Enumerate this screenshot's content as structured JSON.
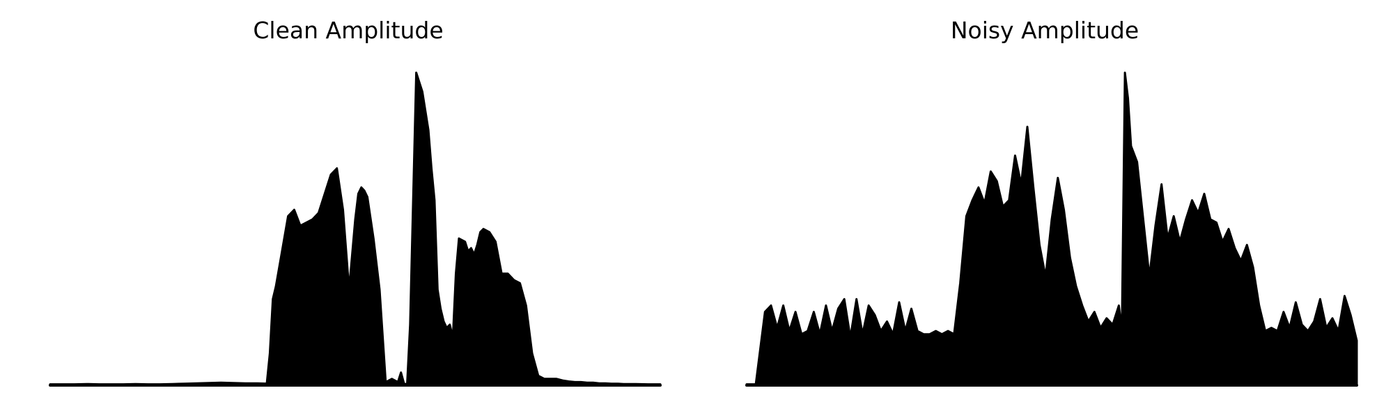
{
  "colors": {
    "waveform": "#000000",
    "background": "#ffffff"
  },
  "chart_data": [
    {
      "type": "area",
      "title": "Clean Amplitude",
      "xlabel": "",
      "ylabel": "",
      "grid": false,
      "axes_visible": false,
      "ylim": [
        0,
        1
      ],
      "x": [
        0.0,
        0.02,
        0.04,
        0.06,
        0.08,
        0.1,
        0.12,
        0.14,
        0.16,
        0.18,
        0.2,
        0.22,
        0.24,
        0.26,
        0.28,
        0.3,
        0.32,
        0.34,
        0.355,
        0.36,
        0.365,
        0.37,
        0.38,
        0.39,
        0.4,
        0.41,
        0.42,
        0.43,
        0.44,
        0.45,
        0.46,
        0.47,
        0.48,
        0.49,
        0.5,
        0.505,
        0.51,
        0.515,
        0.52,
        0.53,
        0.54,
        0.55,
        0.56,
        0.57,
        0.575,
        0.58,
        0.585,
        0.59,
        0.6,
        0.61,
        0.62,
        0.625,
        0.63,
        0.635,
        0.64,
        0.645,
        0.65,
        0.655,
        0.66,
        0.665,
        0.67,
        0.68,
        0.685,
        0.69,
        0.695,
        0.7,
        0.705,
        0.71,
        0.72,
        0.73,
        0.74,
        0.75,
        0.76,
        0.77,
        0.78,
        0.79,
        0.8,
        0.81,
        0.82,
        0.83,
        0.84,
        0.85,
        0.86,
        0.87,
        0.88,
        0.89,
        0.9,
        0.91,
        0.92,
        0.93,
        0.94,
        0.96,
        0.98,
        1.0
      ],
      "values": [
        0.003,
        0.003,
        0.003,
        0.004,
        0.003,
        0.003,
        0.003,
        0.004,
        0.003,
        0.003,
        0.004,
        0.005,
        0.006,
        0.007,
        0.008,
        0.007,
        0.006,
        0.006,
        0.005,
        0.1,
        0.27,
        0.31,
        0.42,
        0.53,
        0.55,
        0.5,
        0.51,
        0.52,
        0.54,
        0.6,
        0.66,
        0.68,
        0.55,
        0.3,
        0.52,
        0.6,
        0.62,
        0.61,
        0.59,
        0.46,
        0.3,
        0.01,
        0.02,
        0.01,
        0.04,
        0.005,
        0.003,
        0.19,
        0.98,
        0.92,
        0.8,
        0.68,
        0.58,
        0.3,
        0.24,
        0.2,
        0.18,
        0.19,
        0.15,
        0.35,
        0.46,
        0.45,
        0.42,
        0.43,
        0.41,
        0.44,
        0.48,
        0.49,
        0.48,
        0.45,
        0.35,
        0.35,
        0.33,
        0.32,
        0.25,
        0.1,
        0.03,
        0.02,
        0.02,
        0.02,
        0.015,
        0.012,
        0.01,
        0.01,
        0.008,
        0.008,
        0.006,
        0.006,
        0.005,
        0.005,
        0.004,
        0.004,
        0.003,
        0.003
      ]
    },
    {
      "type": "area",
      "title": "Noisy Amplitude",
      "xlabel": "",
      "ylabel": "",
      "grid": false,
      "axes_visible": false,
      "ylim": [
        0,
        1
      ],
      "x": [
        0.0,
        0.015,
        0.03,
        0.04,
        0.05,
        0.06,
        0.07,
        0.08,
        0.09,
        0.1,
        0.11,
        0.12,
        0.13,
        0.14,
        0.15,
        0.16,
        0.17,
        0.18,
        0.19,
        0.2,
        0.21,
        0.22,
        0.23,
        0.24,
        0.25,
        0.26,
        0.27,
        0.28,
        0.29,
        0.3,
        0.31,
        0.32,
        0.33,
        0.34,
        0.35,
        0.36,
        0.37,
        0.38,
        0.39,
        0.4,
        0.41,
        0.42,
        0.43,
        0.44,
        0.45,
        0.46,
        0.47,
        0.48,
        0.49,
        0.5,
        0.51,
        0.52,
        0.53,
        0.54,
        0.55,
        0.56,
        0.57,
        0.58,
        0.59,
        0.6,
        0.61,
        0.615,
        0.62,
        0.625,
        0.63,
        0.64,
        0.65,
        0.66,
        0.67,
        0.68,
        0.69,
        0.7,
        0.71,
        0.72,
        0.73,
        0.74,
        0.75,
        0.76,
        0.77,
        0.78,
        0.79,
        0.8,
        0.81,
        0.82,
        0.83,
        0.84,
        0.85,
        0.86,
        0.87,
        0.88,
        0.89,
        0.9,
        0.91,
        0.92,
        0.93,
        0.94,
        0.95,
        0.96,
        0.97,
        0.98,
        0.99,
        1.0
      ],
      "values": [
        0.003,
        0.003,
        0.23,
        0.25,
        0.18,
        0.25,
        0.17,
        0.23,
        0.16,
        0.17,
        0.23,
        0.16,
        0.25,
        0.17,
        0.24,
        0.27,
        0.15,
        0.27,
        0.16,
        0.25,
        0.22,
        0.17,
        0.2,
        0.16,
        0.26,
        0.17,
        0.24,
        0.17,
        0.16,
        0.16,
        0.17,
        0.16,
        0.17,
        0.16,
        0.32,
        0.53,
        0.58,
        0.62,
        0.57,
        0.67,
        0.64,
        0.56,
        0.58,
        0.72,
        0.63,
        0.81,
        0.62,
        0.44,
        0.34,
        0.52,
        0.65,
        0.55,
        0.4,
        0.31,
        0.25,
        0.2,
        0.23,
        0.18,
        0.21,
        0.19,
        0.25,
        0.17,
        0.98,
        0.9,
        0.75,
        0.7,
        0.52,
        0.34,
        0.5,
        0.63,
        0.46,
        0.53,
        0.45,
        0.52,
        0.58,
        0.54,
        0.6,
        0.52,
        0.51,
        0.45,
        0.49,
        0.43,
        0.39,
        0.44,
        0.37,
        0.25,
        0.17,
        0.18,
        0.17,
        0.23,
        0.18,
        0.26,
        0.19,
        0.17,
        0.2,
        0.27,
        0.18,
        0.21,
        0.17,
        0.28,
        0.22,
        0.14
      ]
    }
  ]
}
